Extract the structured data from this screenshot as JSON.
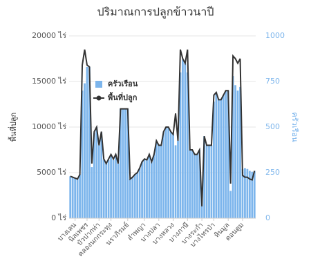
{
  "chart_data": {
    "type": "bar-line",
    "title": "ปริมาณการปลูกข้าวนาปี",
    "y_label": "พื้นที่ปลูก",
    "y2_label": "ครัวเรือน",
    "categories": [
      null,
      null,
      "บางเลน",
      null,
      null,
      null,
      null,
      "นิลเพชร",
      null,
      null,
      null,
      null,
      "บัวปากท่า",
      null,
      null,
      null,
      null,
      "คลองนกกระทุง",
      null,
      null,
      null,
      null,
      null,
      null,
      "นราภิรมย์",
      null,
      null,
      null,
      null,
      null,
      null,
      "ลำพญา",
      null,
      null,
      null,
      null,
      null,
      "บางปลา",
      null,
      null,
      null,
      null,
      null,
      "บางหลวง",
      null,
      null,
      null,
      null,
      null,
      "บางภาษี",
      null,
      null,
      null,
      null,
      null,
      "บางระกำ",
      null,
      null,
      null,
      null,
      "บางไทรป่า",
      null,
      null,
      null,
      null,
      null,
      "หินมูล",
      null,
      null,
      null,
      null,
      null,
      "ดอนตูม",
      null,
      null,
      null,
      null,
      null
    ],
    "series": [
      {
        "name": "ครัวเรือน",
        "kind": "bar",
        "axis": "y2",
        "color": "#7cb5ec",
        "values": [
          230,
          225,
          220,
          215,
          240,
          700,
          740,
          830,
          830,
          280,
          470,
          500,
          400,
          470,
          320,
          300,
          320,
          350,
          320,
          350,
          300,
          600,
          600,
          600,
          600,
          215,
          225,
          240,
          250,
          275,
          310,
          325,
          320,
          350,
          310,
          350,
          425,
          400,
          400,
          475,
          500,
          500,
          475,
          460,
          400,
          425,
          800,
          870,
          850,
          800,
          375,
          375,
          350,
          350,
          375,
          100,
          450,
          400,
          400,
          400,
          640,
          690,
          650,
          650,
          675,
          700,
          700,
          150,
          780,
          730,
          700,
          720,
          270,
          275,
          270,
          260,
          255,
          260
        ]
      },
      {
        "name": "พื้นที่ปลูก",
        "kind": "line",
        "color": "#333333",
        "values": [
          4600,
          4500,
          4400,
          4300,
          4800,
          16800,
          18500,
          16800,
          16600,
          6000,
          9500,
          10000,
          8000,
          9500,
          6500,
          6000,
          6500,
          7000,
          6500,
          7000,
          6000,
          12000,
          12000,
          12000,
          12000,
          4300,
          4500,
          4800,
          5000,
          5500,
          6200,
          6500,
          6400,
          7000,
          6200,
          7000,
          8500,
          8000,
          8000,
          9500,
          10000,
          10000,
          9500,
          9200,
          11500,
          8500,
          18500,
          17500,
          17000,
          18500,
          7500,
          7500,
          7000,
          7000,
          7500,
          1300,
          9000,
          8000,
          8000,
          8000,
          13500,
          13800,
          13000,
          13000,
          13500,
          14000,
          14000,
          3800,
          17800,
          17500,
          17000,
          17500,
          4700,
          4500,
          4500,
          4300,
          4200,
          5200
        ]
      }
    ],
    "ylim": [
      0,
      20000
    ],
    "yticks": [
      {
        "value": 0,
        "label": "0 ไร่"
      },
      {
        "value": 5000,
        "label": "5000 ไร่"
      },
      {
        "value": 10000,
        "label": "10000 ไร่"
      },
      {
        "value": 15000,
        "label": "15000 ไร่"
      },
      {
        "value": 20000,
        "label": "20000 ไร่"
      }
    ],
    "y2lim": [
      0,
      1000
    ],
    "y2ticks": [
      0,
      250,
      500,
      750,
      1000
    ],
    "legend": "upper left"
  }
}
